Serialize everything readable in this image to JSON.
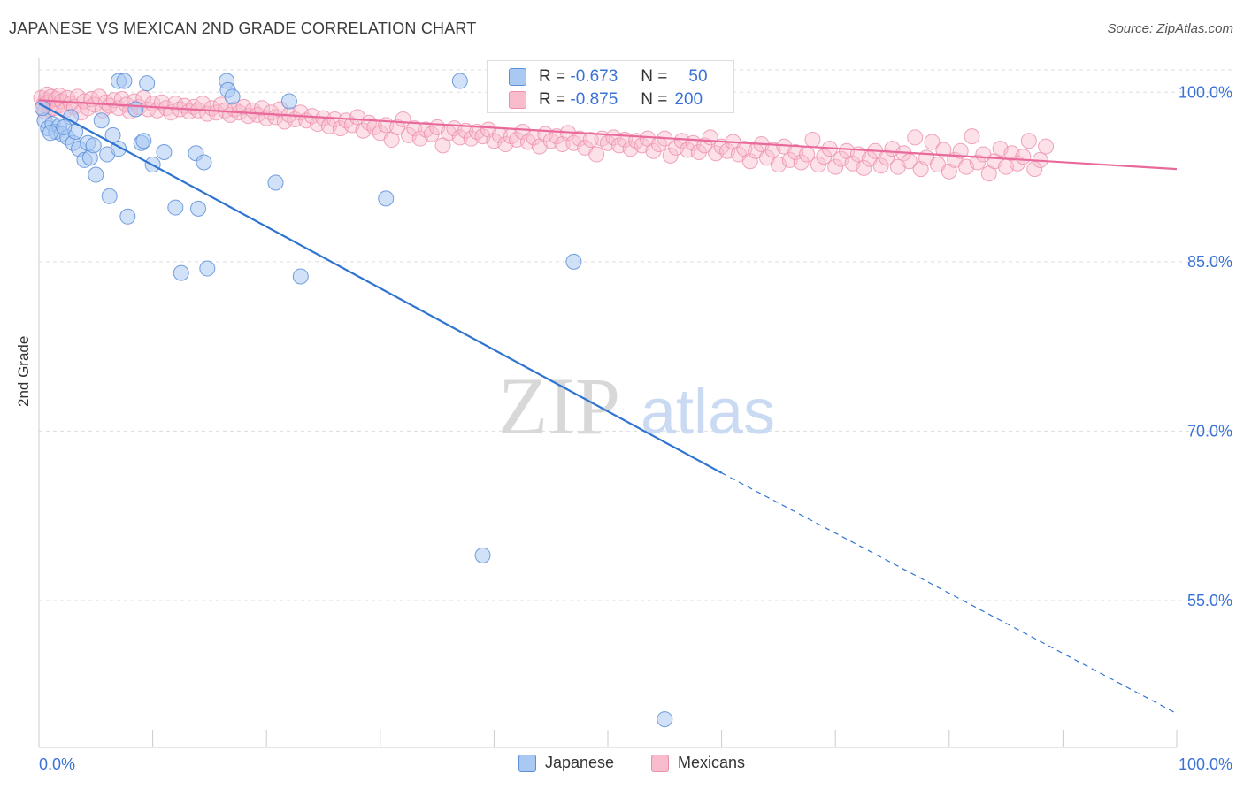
{
  "title": "JAPANESE VS MEXICAN 2ND GRADE CORRELATION CHART",
  "source": "Source: ZipAtlas.com",
  "watermark": {
    "zip": "ZIP",
    "atlas": "atlas"
  },
  "legend_box": {
    "rows": [
      {
        "r_label": "R =",
        "r_value": "-0.673",
        "n_label": "N =",
        "n_value": "50"
      },
      {
        "r_label": "R =",
        "r_value": "-0.875",
        "n_label": "N =",
        "n_value": "200"
      }
    ]
  },
  "colors": {
    "japanese_fill": "#a9c8f2",
    "japanese_stroke": "#5d8fd8",
    "japanese_line": "#2f74d0",
    "mexican_fill": "#f8bccd",
    "mexican_stroke": "#ec8fac",
    "mexican_line": "#e8699a",
    "grid": "#dddddd",
    "tick_label": "#3b72d6"
  },
  "chart_data": {
    "type": "scatter",
    "title": "JAPANESE VS MEXICAN 2ND GRADE CORRELATION CHART",
    "xlabel": "",
    "ylabel": "2nd Grade",
    "xlim": [
      0,
      100
    ],
    "ylim": [
      42,
      103
    ],
    "x_tick_labels": [
      "0.0%",
      "100.0%"
    ],
    "y_ticks": [
      55,
      70,
      85,
      100
    ],
    "y_tick_labels": [
      "55.0%",
      "70.0%",
      "85.0%",
      "100.0%"
    ],
    "grid": true,
    "legend_placement": "bottom",
    "series": [
      {
        "name": "Japanese",
        "R": -0.673,
        "N": 50,
        "trend": {
          "x0": 0,
          "y0": 99.0,
          "x1": 60,
          "y1": 66.3,
          "dash_to_x": 100,
          "dash_to_y": 45.0
        },
        "points": [
          [
            0.5,
            97.5
          ],
          [
            0.8,
            96.8
          ],
          [
            1.2,
            97.2
          ],
          [
            1.5,
            96.5
          ],
          [
            1.8,
            97.0
          ],
          [
            2.0,
            96.3
          ],
          [
            2.5,
            96.0
          ],
          [
            2.8,
            97.8
          ],
          [
            3.0,
            95.5
          ],
          [
            3.2,
            96.5
          ],
          [
            3.5,
            95.0
          ],
          [
            4.0,
            94.0
          ],
          [
            4.3,
            95.5
          ],
          [
            4.5,
            94.2
          ],
          [
            4.8,
            95.3
          ],
          [
            5.0,
            92.7
          ],
          [
            5.5,
            97.5
          ],
          [
            6.0,
            94.5
          ],
          [
            6.2,
            90.8
          ],
          [
            6.5,
            96.2
          ],
          [
            7.0,
            95.0
          ],
          [
            7.0,
            101.0
          ],
          [
            7.5,
            101.0
          ],
          [
            7.8,
            89.0
          ],
          [
            8.5,
            98.5
          ],
          [
            9.0,
            95.5
          ],
          [
            9.2,
            95.7
          ],
          [
            9.5,
            100.8
          ],
          [
            10.0,
            93.6
          ],
          [
            11.0,
            94.7
          ],
          [
            12.0,
            89.8
          ],
          [
            12.5,
            84.0
          ],
          [
            13.8,
            94.6
          ],
          [
            14.0,
            89.7
          ],
          [
            14.5,
            93.8
          ],
          [
            14.8,
            84.4
          ],
          [
            16.5,
            101.0
          ],
          [
            16.6,
            100.2
          ],
          [
            17.0,
            99.6
          ],
          [
            20.8,
            92.0
          ],
          [
            22.0,
            99.2
          ],
          [
            23.0,
            83.7
          ],
          [
            30.5,
            90.6
          ],
          [
            37.0,
            101.0
          ],
          [
            39.0,
            59.0
          ],
          [
            47.0,
            85.0
          ],
          [
            55.0,
            44.5
          ],
          [
            1.0,
            96.4
          ],
          [
            2.2,
            96.9
          ],
          [
            0.3,
            98.6
          ]
        ]
      },
      {
        "name": "Mexicans",
        "R": -0.875,
        "N": 200,
        "trend": {
          "x0": 0,
          "y0": 99.3,
          "x1": 100,
          "y1": 93.2
        },
        "points": [
          [
            0.2,
            99.5
          ],
          [
            0.4,
            98.9
          ],
          [
            0.5,
            98.3
          ],
          [
            0.6,
            99.3
          ],
          [
            0.7,
            99.8
          ],
          [
            0.8,
            99.1
          ],
          [
            0.9,
            98.5
          ],
          [
            1.1,
            99.6
          ],
          [
            1.3,
            98.6
          ],
          [
            1.5,
            99.4
          ],
          [
            1.7,
            98.8
          ],
          [
            1.8,
            99.7
          ],
          [
            2.0,
            99.2
          ],
          [
            2.3,
            98.4
          ],
          [
            2.5,
            99.5
          ],
          [
            2.8,
            99.0
          ],
          [
            3.1,
            98.7
          ],
          [
            3.4,
            99.6
          ],
          [
            3.7,
            98.2
          ],
          [
            4.0,
            99.2
          ],
          [
            4.3,
            98.6
          ],
          [
            4.6,
            99.4
          ],
          [
            4.9,
            98.9
          ],
          [
            5.3,
            99.6
          ],
          [
            5.6,
            98.4
          ],
          [
            5.9,
            99.1
          ],
          [
            6.2,
            98.8
          ],
          [
            6.6,
            99.3
          ],
          [
            7.0,
            98.6
          ],
          [
            7.3,
            99.4
          ],
          [
            7.7,
            98.9
          ],
          [
            8.0,
            98.3
          ],
          [
            8.4,
            99.2
          ],
          [
            8.8,
            98.7
          ],
          [
            9.2,
            99.5
          ],
          [
            9.6,
            98.5
          ],
          [
            10.0,
            99.0
          ],
          [
            10.4,
            98.4
          ],
          [
            10.8,
            99.1
          ],
          [
            11.2,
            98.6
          ],
          [
            11.6,
            98.2
          ],
          [
            12.0,
            99.0
          ],
          [
            12.4,
            98.5
          ],
          [
            12.8,
            98.8
          ],
          [
            13.2,
            98.3
          ],
          [
            13.6,
            98.7
          ],
          [
            14.0,
            98.4
          ],
          [
            14.4,
            99.0
          ],
          [
            14.8,
            98.1
          ],
          [
            15.2,
            98.6
          ],
          [
            15.6,
            98.2
          ],
          [
            16.0,
            98.9
          ],
          [
            16.4,
            98.4
          ],
          [
            16.8,
            98.0
          ],
          [
            17.2,
            98.5
          ],
          [
            17.6,
            98.2
          ],
          [
            18.0,
            98.7
          ],
          [
            18.4,
            97.9
          ],
          [
            18.8,
            98.4
          ],
          [
            19.2,
            98.0
          ],
          [
            19.6,
            98.6
          ],
          [
            20.0,
            97.7
          ],
          [
            20.4,
            98.2
          ],
          [
            20.8,
            97.8
          ],
          [
            21.2,
            98.5
          ],
          [
            21.6,
            97.4
          ],
          [
            22.0,
            98.0
          ],
          [
            22.5,
            97.6
          ],
          [
            23.0,
            98.2
          ],
          [
            23.5,
            97.5
          ],
          [
            24.0,
            97.9
          ],
          [
            24.5,
            97.2
          ],
          [
            25.0,
            97.7
          ],
          [
            25.5,
            97.0
          ],
          [
            26.0,
            97.6
          ],
          [
            26.5,
            96.8
          ],
          [
            27.0,
            97.5
          ],
          [
            27.5,
            97.1
          ],
          [
            28.0,
            97.8
          ],
          [
            28.5,
            96.6
          ],
          [
            29.0,
            97.3
          ],
          [
            29.5,
            96.9
          ],
          [
            30.0,
            96.4
          ],
          [
            30.5,
            97.1
          ],
          [
            31.0,
            95.8
          ],
          [
            31.5,
            96.9
          ],
          [
            32.0,
            97.6
          ],
          [
            32.5,
            96.2
          ],
          [
            33.0,
            96.8
          ],
          [
            33.5,
            95.9
          ],
          [
            34.0,
            96.7
          ],
          [
            34.5,
            96.3
          ],
          [
            35.0,
            96.9
          ],
          [
            35.5,
            95.3
          ],
          [
            36.0,
            96.4
          ],
          [
            36.5,
            96.8
          ],
          [
            37.0,
            96.0
          ],
          [
            37.5,
            96.6
          ],
          [
            38.0,
            95.9
          ],
          [
            38.5,
            96.5
          ],
          [
            39.0,
            96.1
          ],
          [
            39.5,
            96.7
          ],
          [
            40.0,
            95.7
          ],
          [
            40.5,
            96.2
          ],
          [
            41.0,
            95.4
          ],
          [
            41.5,
            96.1
          ],
          [
            42.0,
            95.8
          ],
          [
            42.5,
            96.5
          ],
          [
            43.0,
            95.6
          ],
          [
            43.5,
            96.0
          ],
          [
            44.0,
            95.2
          ],
          [
            44.5,
            96.3
          ],
          [
            45.0,
            95.7
          ],
          [
            45.5,
            96.1
          ],
          [
            46.0,
            95.4
          ],
          [
            46.5,
            96.4
          ],
          [
            47.0,
            95.5
          ],
          [
            47.5,
            95.9
          ],
          [
            48.0,
            95.1
          ],
          [
            48.5,
            95.8
          ],
          [
            49.0,
            94.5
          ],
          [
            49.5,
            95.9
          ],
          [
            50.0,
            95.5
          ],
          [
            50.5,
            96.0
          ],
          [
            51.0,
            95.3
          ],
          [
            51.5,
            95.8
          ],
          [
            52.0,
            95.0
          ],
          [
            52.5,
            95.7
          ],
          [
            53.0,
            95.3
          ],
          [
            53.5,
            95.9
          ],
          [
            54.0,
            94.8
          ],
          [
            54.5,
            95.4
          ],
          [
            55.0,
            95.9
          ],
          [
            55.5,
            94.4
          ],
          [
            56.0,
            95.1
          ],
          [
            56.5,
            95.7
          ],
          [
            57.0,
            94.9
          ],
          [
            57.5,
            95.5
          ],
          [
            58.0,
            94.7
          ],
          [
            58.5,
            95.3
          ],
          [
            59.0,
            96.0
          ],
          [
            59.5,
            94.6
          ],
          [
            60.0,
            95.2
          ],
          [
            60.5,
            94.8
          ],
          [
            61.0,
            95.6
          ],
          [
            61.5,
            94.5
          ],
          [
            62.0,
            95.0
          ],
          [
            62.5,
            93.9
          ],
          [
            63.0,
            94.8
          ],
          [
            63.5,
            95.4
          ],
          [
            64.0,
            94.2
          ],
          [
            64.5,
            94.9
          ],
          [
            65.0,
            93.6
          ],
          [
            65.5,
            95.2
          ],
          [
            66.0,
            94.0
          ],
          [
            66.5,
            94.7
          ],
          [
            67.0,
            93.8
          ],
          [
            67.5,
            94.5
          ],
          [
            68.0,
            95.8
          ],
          [
            68.5,
            93.6
          ],
          [
            69.0,
            94.3
          ],
          [
            69.5,
            95.0
          ],
          [
            70.0,
            93.4
          ],
          [
            70.5,
            94.1
          ],
          [
            71.0,
            94.8
          ],
          [
            71.5,
            93.7
          ],
          [
            72.0,
            94.5
          ],
          [
            72.5,
            93.3
          ],
          [
            73.0,
            94.1
          ],
          [
            73.5,
            94.8
          ],
          [
            74.0,
            93.5
          ],
          [
            74.5,
            94.2
          ],
          [
            75.0,
            95.0
          ],
          [
            75.5,
            93.4
          ],
          [
            76.0,
            94.6
          ],
          [
            76.5,
            93.9
          ],
          [
            77.0,
            96.0
          ],
          [
            77.5,
            93.2
          ],
          [
            78.0,
            94.2
          ],
          [
            78.5,
            95.6
          ],
          [
            79.0,
            93.6
          ],
          [
            79.5,
            94.9
          ],
          [
            80.0,
            93.0
          ],
          [
            80.5,
            94.0
          ],
          [
            81.0,
            94.8
          ],
          [
            81.5,
            93.4
          ],
          [
            82.0,
            96.1
          ],
          [
            82.5,
            93.8
          ],
          [
            83.0,
            94.5
          ],
          [
            83.5,
            92.8
          ],
          [
            84.0,
            93.9
          ],
          [
            84.5,
            95.0
          ],
          [
            85.0,
            93.4
          ],
          [
            85.5,
            94.6
          ],
          [
            86.0,
            93.7
          ],
          [
            86.5,
            94.3
          ],
          [
            87.0,
            95.7
          ],
          [
            87.5,
            93.2
          ],
          [
            88.0,
            94.0
          ],
          [
            88.5,
            95.2
          ]
        ]
      }
    ]
  },
  "bottom_legend": {
    "items": [
      "Japanese",
      "Mexicans"
    ]
  }
}
